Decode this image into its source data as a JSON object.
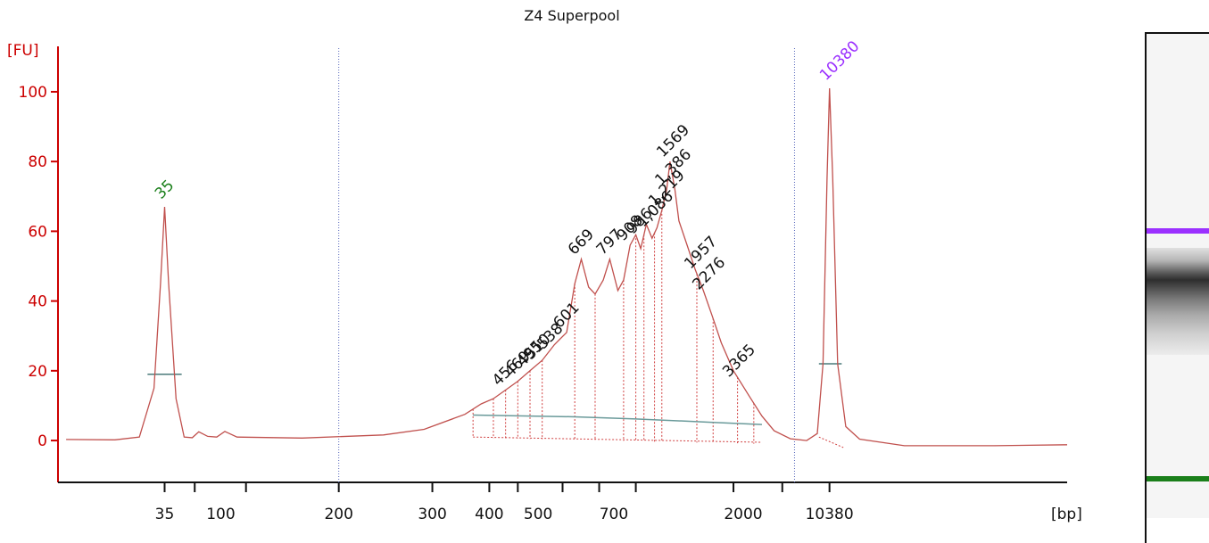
{
  "chart_data": {
    "type": "line",
    "title": "Z4 Superpool",
    "ylabel": "[FU]",
    "xlabel": "[bp]",
    "ylim": [
      -12,
      112
    ],
    "y_ticks": [
      0,
      20,
      40,
      60,
      80,
      100
    ],
    "x_ticks": [
      "35",
      "100",
      "200",
      "300",
      "400",
      "500",
      "700",
      "2000",
      "10380"
    ],
    "grid": false,
    "series": [
      {
        "color": "#c0504d",
        "points": [
          [
            1,
            0.3
          ],
          [
            7,
            0.2
          ],
          [
            10,
            1.0
          ],
          [
            11.8,
            15
          ],
          [
            12.6,
            45
          ],
          [
            13.1,
            67
          ],
          [
            13.6,
            45
          ],
          [
            14.5,
            12
          ],
          [
            15.5,
            1.0
          ],
          [
            16.5,
            0.8
          ],
          [
            17.3,
            2.5
          ],
          [
            18.4,
            1.2
          ],
          [
            19.5,
            1.0
          ],
          [
            20.5,
            2.6
          ],
          [
            22,
            1.0
          ],
          [
            30,
            0.7
          ],
          [
            40,
            1.6
          ],
          [
            45,
            3.2
          ],
          [
            50,
            7.5
          ],
          [
            52,
            10.5
          ],
          [
            53.5,
            12
          ],
          [
            55,
            14.5
          ],
          [
            56.5,
            17
          ],
          [
            58,
            20
          ],
          [
            59.5,
            23
          ],
          [
            61,
            27.5
          ],
          [
            62.5,
            31
          ],
          [
            63.5,
            45
          ],
          [
            64.3,
            52
          ],
          [
            65.2,
            44
          ],
          [
            66,
            42
          ],
          [
            67,
            46
          ],
          [
            67.8,
            52
          ],
          [
            68.8,
            43
          ],
          [
            69.5,
            46
          ],
          [
            70.3,
            56
          ],
          [
            71,
            59
          ],
          [
            71.6,
            55
          ],
          [
            72.3,
            62
          ],
          [
            73,
            58
          ],
          [
            73.6,
            61
          ],
          [
            74.2,
            66
          ],
          [
            74.8,
            72
          ],
          [
            75.2,
            80
          ],
          [
            75.8,
            72
          ],
          [
            76.3,
            63
          ],
          [
            77.3,
            56
          ],
          [
            78.3,
            49
          ],
          [
            79.3,
            43
          ],
          [
            80.5,
            35
          ],
          [
            81.5,
            28
          ],
          [
            83,
            20
          ],
          [
            85,
            12.5
          ],
          [
            86.5,
            7
          ],
          [
            88,
            2.8
          ],
          [
            90,
            0.5
          ],
          [
            92,
            0.0
          ],
          [
            93.3,
            2.0
          ],
          [
            94,
            22
          ],
          [
            94.5,
            75
          ],
          [
            94.8,
            101
          ],
          [
            95.2,
            75
          ],
          [
            95.8,
            22
          ],
          [
            96.8,
            4
          ],
          [
            98.5,
            0.4
          ],
          [
            104,
            -1.5
          ],
          [
            115,
            -1.5
          ],
          [
            124,
            -1.2
          ]
        ]
      }
    ],
    "markers": [
      {
        "label": "35",
        "color": "#1a7f1a",
        "x": 13.1,
        "y": 67
      },
      {
        "label": "10380",
        "color": "#9b30ff",
        "x": 94.8,
        "y": 101
      }
    ],
    "peak_labels": [
      {
        "label": "456",
        "x": 55.0,
        "y": 14.5
      },
      {
        "label": "469",
        "x": 56.5,
        "y": 17
      },
      {
        "label": "495",
        "x": 58.0,
        "y": 20
      },
      {
        "label": "510",
        "x": 59.0,
        "y": 22
      },
      {
        "label": "538",
        "x": 60.5,
        "y": 25
      },
      {
        "label": "601",
        "x": 62.5,
        "y": 31
      },
      {
        "label": "669",
        "x": 64.3,
        "y": 52
      },
      {
        "label": "797",
        "x": 67.8,
        "y": 52
      },
      {
        "label": "908",
        "x": 70.3,
        "y": 56
      },
      {
        "label": "986",
        "x": 71.5,
        "y": 58
      },
      {
        "label": "1,086",
        "x": 72.8,
        "y": 60
      },
      {
        "label": "1,219",
        "x": 74.2,
        "y": 66
      },
      {
        "label": "1,386",
        "x": 75.0,
        "y": 72
      },
      {
        "label": "1569",
        "x": 75.2,
        "y": 80
      },
      {
        "label": "1957",
        "x": 78.6,
        "y": 48
      },
      {
        "label": "2276",
        "x": 79.6,
        "y": 42
      },
      {
        "label": "3365",
        "x": 83.3,
        "y": 17
      }
    ]
  },
  "gel": {
    "upper_marker_color": "#9b30ff",
    "lower_marker_color": "#1a7f1a"
  }
}
